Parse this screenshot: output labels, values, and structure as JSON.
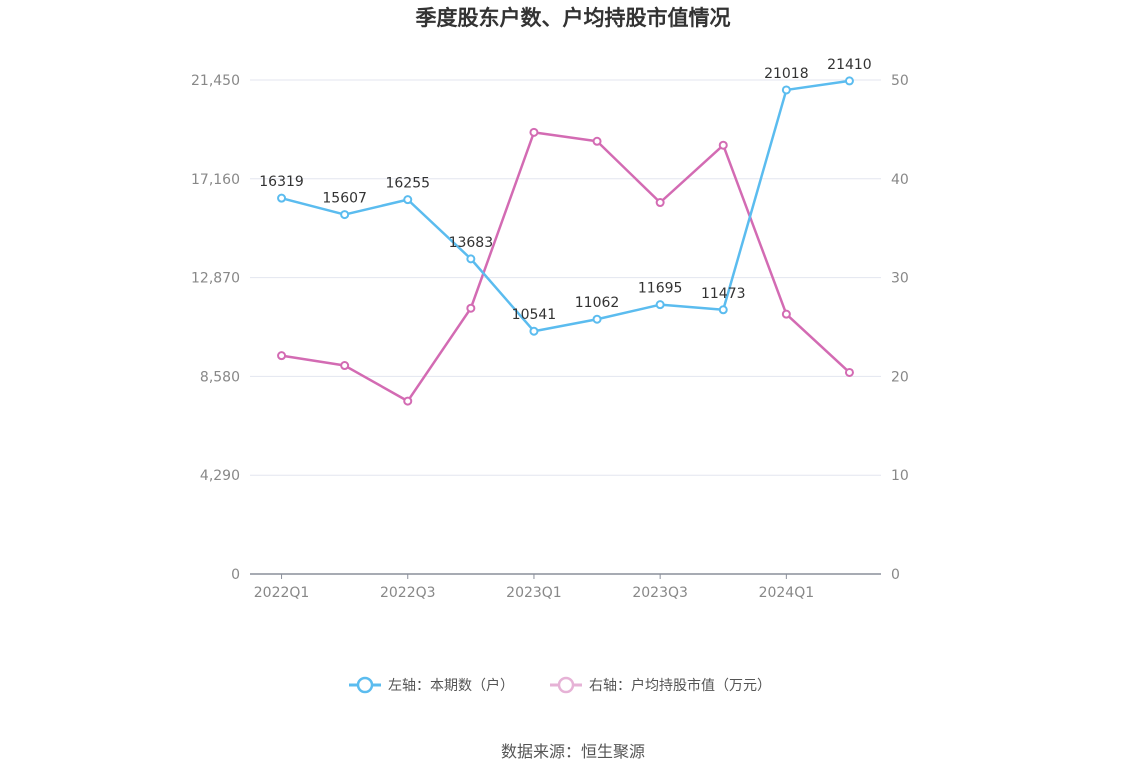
{
  "chart_data": {
    "type": "line",
    "title": "季度股东户数、户均持股市值情况",
    "categories": [
      "2022Q1",
      "2022Q2",
      "2022Q3",
      "2022Q4",
      "2023Q1",
      "2023Q2",
      "2023Q3",
      "2023Q4",
      "2024Q1",
      "2024Q2"
    ],
    "x_tick_labels": [
      "2022Q1",
      "2022Q3",
      "2023Q1",
      "2023Q3",
      "2024Q1"
    ],
    "left_axis": {
      "ticks": [
        "0",
        "4,290",
        "8,580",
        "12,870",
        "17,160",
        "21,450"
      ],
      "ylim": [
        0,
        21450
      ]
    },
    "right_axis": {
      "ticks": [
        "0",
        "10",
        "20",
        "30",
        "40",
        "50"
      ],
      "ylim": [
        0,
        50
      ]
    },
    "series": [
      {
        "name": "左轴：本期数（户）",
        "axis": "left",
        "color": "#5bbcef",
        "values": [
          16319,
          15607,
          16255,
          13683,
          10541,
          11062,
          11695,
          11473,
          21018,
          21410
        ],
        "data_labels": [
          "16319",
          "15607",
          "16255",
          "13683",
          "10541",
          "11062",
          "11695",
          "11473",
          "21018",
          "21410"
        ]
      },
      {
        "name": "右轴：户均持股市值（万元）",
        "axis": "right",
        "color": "#d36bb3",
        "values": [
          22.1,
          21.1,
          17.5,
          26.9,
          44.7,
          43.8,
          37.6,
          43.4,
          26.3,
          20.4
        ]
      }
    ],
    "legend_placement": "bottom",
    "grid": true
  },
  "source": "数据来源：恒生聚源"
}
